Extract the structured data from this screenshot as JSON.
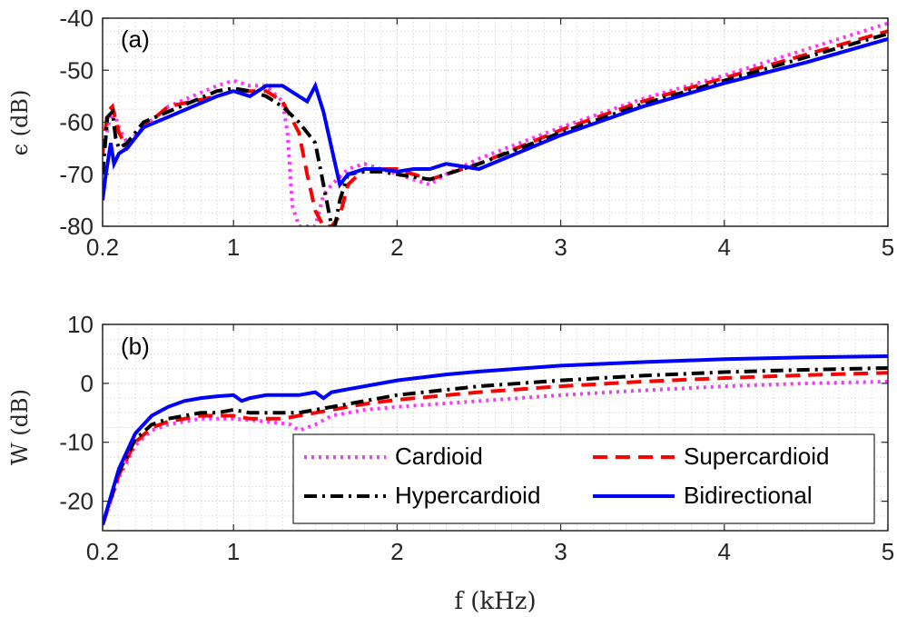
{
  "figure": {
    "xlabel": "f (kHz)"
  },
  "legend": {
    "entries": [
      {
        "label": "Cardioid",
        "color": "#ff33ff",
        "style": "dotted"
      },
      {
        "label": "Supercardioid",
        "color": "#ff0000",
        "style": "dashed"
      },
      {
        "label": "Hypercardioid",
        "color": "#000000",
        "style": "dashdot"
      },
      {
        "label": "Bidirectional",
        "color": "#0000ff",
        "style": "solid"
      }
    ]
  },
  "chart_data": [
    {
      "type": "line",
      "panel_label": "(a)",
      "ylabel": "ϵ (dB)",
      "xlabel": "",
      "xlim": [
        0.2,
        5
      ],
      "ylim": [
        -80,
        -40
      ],
      "xticks": [
        0.2,
        1,
        2,
        3,
        4,
        5
      ],
      "xtick_labels": [
        "0.2",
        "1",
        "2",
        "3",
        "4",
        "5"
      ],
      "yticks": [
        -80,
        -70,
        -60,
        -50,
        -40
      ],
      "ytick_labels": [
        "-80",
        "-70",
        "-60",
        "-50",
        "-40"
      ],
      "grid": true,
      "series": [
        {
          "name": "Cardioid",
          "x": [
            0.2,
            0.24,
            0.27,
            0.3,
            0.35,
            0.45,
            0.6,
            0.75,
            0.9,
            1.0,
            1.1,
            1.2,
            1.3,
            1.33,
            1.36,
            1.4,
            1.45,
            1.5,
            1.55,
            1.6,
            1.7,
            1.8,
            1.9,
            2.0,
            2.1,
            2.2,
            2.3,
            2.5,
            3.0,
            3.5,
            4.0,
            4.5,
            5.0
          ],
          "y": [
            -66,
            -60,
            -58,
            -61,
            -64,
            -61,
            -57,
            -55,
            -53,
            -52,
            -53,
            -53,
            -56,
            -62,
            -76,
            -80,
            -80,
            -80,
            -74,
            -72,
            -69,
            -68,
            -69,
            -70,
            -71,
            -72,
            -70,
            -67,
            -61,
            -55.5,
            -51,
            -46,
            -41
          ]
        },
        {
          "name": "Supercardioid",
          "x": [
            0.2,
            0.23,
            0.26,
            0.3,
            0.35,
            0.45,
            0.6,
            0.75,
            0.9,
            1.0,
            1.1,
            1.2,
            1.3,
            1.4,
            1.45,
            1.5,
            1.55,
            1.6,
            1.65,
            1.7,
            1.8,
            1.9,
            2.0,
            2.1,
            2.2,
            2.3,
            2.5,
            3.0,
            3.5,
            4.0,
            4.5,
            5.0
          ],
          "y": [
            -66,
            -58,
            -57,
            -62,
            -65,
            -61,
            -57,
            -56,
            -55,
            -54,
            -54,
            -54,
            -56,
            -62,
            -70,
            -77,
            -80,
            -80,
            -78,
            -72,
            -69,
            -69,
            -69,
            -70,
            -71,
            -70,
            -68,
            -61.5,
            -56,
            -51.5,
            -47,
            -42.5
          ]
        },
        {
          "name": "Hypercardioid",
          "x": [
            0.2,
            0.23,
            0.26,
            0.28,
            0.3,
            0.35,
            0.45,
            0.6,
            0.75,
            0.9,
            1.0,
            1.1,
            1.2,
            1.3,
            1.4,
            1.5,
            1.55,
            1.6,
            1.62,
            1.65,
            1.7,
            1.8,
            1.9,
            2.0,
            2.1,
            2.2,
            2.3,
            2.5,
            3.0,
            3.5,
            4.0,
            4.5,
            5.0
          ],
          "y": [
            -70,
            -59,
            -58,
            -63,
            -65,
            -64,
            -60,
            -58,
            -56,
            -54,
            -53.5,
            -54,
            -55,
            -57,
            -60,
            -64,
            -72,
            -80,
            -80,
            -75,
            -70,
            -69.5,
            -69.5,
            -70,
            -70.5,
            -71,
            -70,
            -68,
            -62,
            -56.5,
            -52,
            -47.5,
            -43
          ]
        },
        {
          "name": "Bidirectional",
          "x": [
            0.2,
            0.22,
            0.25,
            0.27,
            0.3,
            0.35,
            0.45,
            0.6,
            0.75,
            0.9,
            1.0,
            1.1,
            1.2,
            1.3,
            1.4,
            1.45,
            1.5,
            1.55,
            1.6,
            1.65,
            1.7,
            1.8,
            1.9,
            2.0,
            2.1,
            2.2,
            2.3,
            2.5,
            3.0,
            3.5,
            4.0,
            4.5,
            5.0
          ],
          "y": [
            -75,
            -70,
            -64,
            -68,
            -66,
            -65,
            -61,
            -59,
            -57,
            -55,
            -54,
            -55,
            -53,
            -53,
            -55,
            -56,
            -53,
            -58,
            -65,
            -72,
            -70,
            -69,
            -69,
            -69.5,
            -69,
            -69,
            -68,
            -69,
            -62.5,
            -57,
            -52.5,
            -48.5,
            -44
          ]
        }
      ]
    },
    {
      "type": "line",
      "panel_label": "(b)",
      "ylabel": "W (dB)",
      "xlabel": "f (kHz)",
      "xlim": [
        0.2,
        5
      ],
      "ylim": [
        -25,
        10
      ],
      "xticks": [
        0.2,
        1,
        2,
        3,
        4,
        5
      ],
      "xtick_labels": [
        "0.2",
        "1",
        "2",
        "3",
        "4",
        "5"
      ],
      "yticks": [
        -20,
        -10,
        0,
        10
      ],
      "ytick_labels": [
        "-20",
        "-10",
        "0",
        "10"
      ],
      "grid": true,
      "series": [
        {
          "name": "Cardioid",
          "x": [
            0.2,
            0.3,
            0.4,
            0.5,
            0.6,
            0.7,
            0.8,
            0.9,
            1.0,
            1.1,
            1.2,
            1.3,
            1.35,
            1.4,
            1.5,
            1.6,
            1.7,
            1.8,
            2.0,
            2.5,
            3.0,
            3.5,
            4.0,
            4.5,
            5.0
          ],
          "y": [
            -24,
            -16,
            -10.5,
            -8,
            -7,
            -6.5,
            -6,
            -6,
            -6,
            -6.2,
            -6.5,
            -6.8,
            -7,
            -8,
            -7,
            -5.5,
            -5,
            -4.5,
            -4,
            -3,
            -2,
            -1.2,
            -0.5,
            0,
            0.3
          ]
        },
        {
          "name": "Supercardioid",
          "x": [
            0.2,
            0.3,
            0.4,
            0.5,
            0.6,
            0.7,
            0.8,
            0.9,
            1.0,
            1.1,
            1.2,
            1.3,
            1.4,
            1.5,
            1.6,
            1.7,
            1.8,
            2.0,
            2.5,
            3.0,
            3.5,
            4.0,
            4.5,
            5.0
          ],
          "y": [
            -24,
            -15.5,
            -10,
            -7.5,
            -6.5,
            -6,
            -5.5,
            -5.5,
            -5.5,
            -6,
            -6,
            -6,
            -5.5,
            -5,
            -4.5,
            -4,
            -3.5,
            -2.8,
            -1.5,
            -0.5,
            0.3,
            0.9,
            1.4,
            1.8
          ]
        },
        {
          "name": "Hypercardioid",
          "x": [
            0.2,
            0.3,
            0.4,
            0.5,
            0.6,
            0.7,
            0.8,
            0.9,
            1.0,
            1.1,
            1.2,
            1.3,
            1.4,
            1.5,
            1.6,
            1.7,
            1.8,
            2.0,
            2.5,
            3.0,
            3.5,
            4.0,
            4.5,
            5.0
          ],
          "y": [
            -24,
            -15,
            -9.5,
            -7,
            -6,
            -5.5,
            -5,
            -5,
            -4.5,
            -5,
            -5,
            -5,
            -5,
            -4.5,
            -4,
            -3.5,
            -3,
            -2,
            -0.5,
            0.5,
            1.3,
            1.9,
            2.3,
            2.6
          ]
        },
        {
          "name": "Bidirectional",
          "x": [
            0.2,
            0.3,
            0.4,
            0.5,
            0.6,
            0.7,
            0.8,
            0.9,
            1.0,
            1.05,
            1.1,
            1.2,
            1.3,
            1.4,
            1.5,
            1.55,
            1.6,
            1.7,
            1.8,
            2.0,
            2.3,
            2.5,
            3.0,
            3.5,
            4.0,
            4.5,
            5.0
          ],
          "y": [
            -24,
            -14.5,
            -8.5,
            -5.5,
            -4,
            -3,
            -2.5,
            -2.2,
            -2,
            -3,
            -2.5,
            -2,
            -2,
            -2,
            -1.5,
            -2.5,
            -1.5,
            -1,
            -0.5,
            0.5,
            1.5,
            2,
            3,
            3.6,
            4.1,
            4.4,
            4.6
          ]
        }
      ]
    }
  ]
}
